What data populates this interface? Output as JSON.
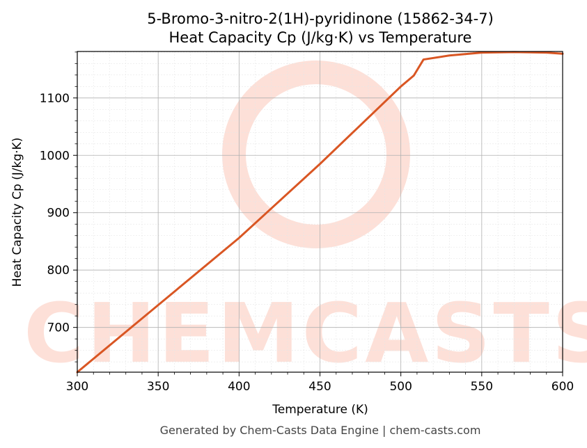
{
  "chart_data": {
    "type": "line",
    "title": "5-Bromo-3-nitro-2(1H)-pyridinone (15862-34-7)",
    "subtitle": "Heat Capacity Cp (J/kg·K) vs Temperature",
    "xlabel": "Temperature (K)",
    "ylabel": "Heat Capacity Cp (J/kg·K)",
    "xlim": [
      300,
      600
    ],
    "ylim": [
      622,
      1181
    ],
    "x_ticks": [
      300,
      350,
      400,
      450,
      500,
      550,
      600
    ],
    "y_ticks": [
      700,
      800,
      900,
      1000,
      1100
    ],
    "grid": true,
    "series": [
      {
        "color": "#d95623",
        "x": [
          300,
          350,
          400,
          450,
          500,
          508,
          514,
          530,
          550,
          570,
          590,
          600
        ],
        "y": [
          622,
          739,
          856,
          985,
          1120,
          1139,
          1167,
          1174,
          1179,
          1180,
          1179,
          1177
        ]
      }
    ]
  },
  "watermark": {
    "text": "CHEMCASTS",
    "color": "#fde0d8"
  },
  "footer": "Generated by Chem-Casts Data Engine | chem-casts.com"
}
